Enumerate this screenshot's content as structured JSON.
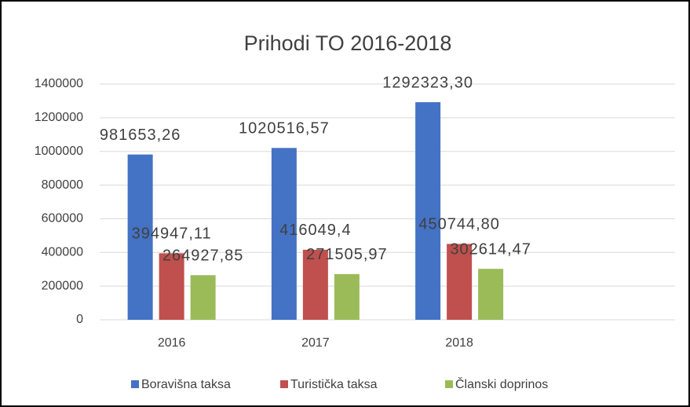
{
  "chart_data": {
    "type": "bar",
    "title": "Prihodi TO 2016-2018",
    "categories": [
      "2016",
      "2017",
      "2018",
      null
    ],
    "series": [
      {
        "name": "Boravišna taksa",
        "color": "#4472c4",
        "values": [
          981653.26,
          1020516.57,
          1292323.3,
          null
        ],
        "value_labels": [
          "981653,26",
          "1020516,57",
          "1292323,30",
          null
        ]
      },
      {
        "name": "Turistička taksa",
        "color": "#c0504d",
        "values": [
          394947.11,
          416049.4,
          450744.8,
          null
        ],
        "value_labels": [
          "394947,11",
          "416049,4",
          "450744,80",
          null
        ]
      },
      {
        "name": "Članski doprinos",
        "color": "#9bbb59",
        "values": [
          264927.85,
          271505.97,
          302614.47,
          null
        ],
        "value_labels": [
          "264927,85",
          "271505,97",
          "302614,47",
          null
        ]
      }
    ],
    "ylim": [
      0,
      1400000
    ],
    "yticks": [
      0,
      200000,
      400000,
      600000,
      800000,
      1000000,
      1200000,
      1400000
    ],
    "grid": true,
    "legend": "bottom"
  }
}
